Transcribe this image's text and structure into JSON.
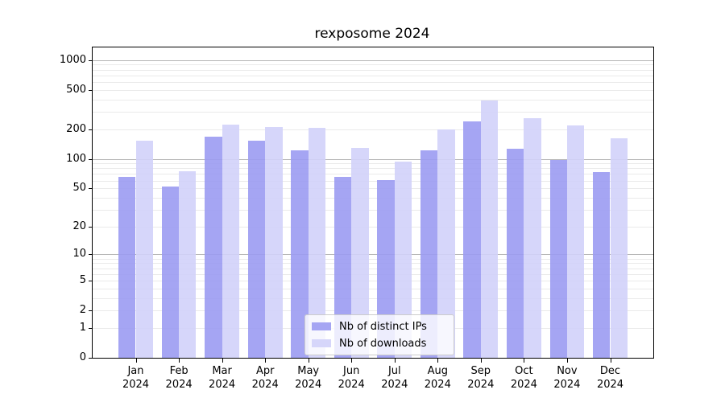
{
  "chart_data": {
    "type": "bar",
    "title": "rexposome 2024",
    "categories": [
      "Jan",
      "Feb",
      "Mar",
      "Apr",
      "May",
      "Jun",
      "Jul",
      "Aug",
      "Sep",
      "Oct",
      "Nov",
      "Dec"
    ],
    "x_tick_year": "2024",
    "series": [
      {
        "name": "Nb of distinct IPs",
        "color": "#9b9bf2",
        "opacity": 0.9,
        "values": [
          66,
          52,
          167,
          154,
          122,
          66,
          61,
          122,
          241,
          126,
          97,
          73
        ]
      },
      {
        "name": "Nb of downloads",
        "color": "#d2d2f9",
        "opacity": 0.9,
        "values": [
          154,
          75,
          223,
          210,
          205,
          130,
          93,
          197,
          387,
          259,
          217,
          163
        ]
      }
    ],
    "y_axis": {
      "scale": "log1p",
      "tick_values": [
        0,
        1,
        2,
        5,
        10,
        20,
        50,
        100,
        200,
        500,
        1000
      ],
      "tick_labels": [
        "0",
        "1",
        "2",
        "5",
        "10",
        "20",
        "50",
        "100",
        "200",
        "500",
        "1000"
      ],
      "max_value": 1337,
      "major_grid_values": [
        10,
        100,
        1000
      ],
      "minor_grid_values": [
        1,
        2,
        3,
        4,
        5,
        6,
        7,
        8,
        9,
        20,
        30,
        40,
        50,
        60,
        70,
        80,
        90,
        200,
        300,
        400,
        500,
        600,
        700,
        800,
        900
      ],
      "major_grid_color": "#b5b5b5",
      "minor_grid_color": "#eaeaea"
    },
    "legend_position": "lower-center-inside",
    "grid": true,
    "background": "#ffffff"
  }
}
